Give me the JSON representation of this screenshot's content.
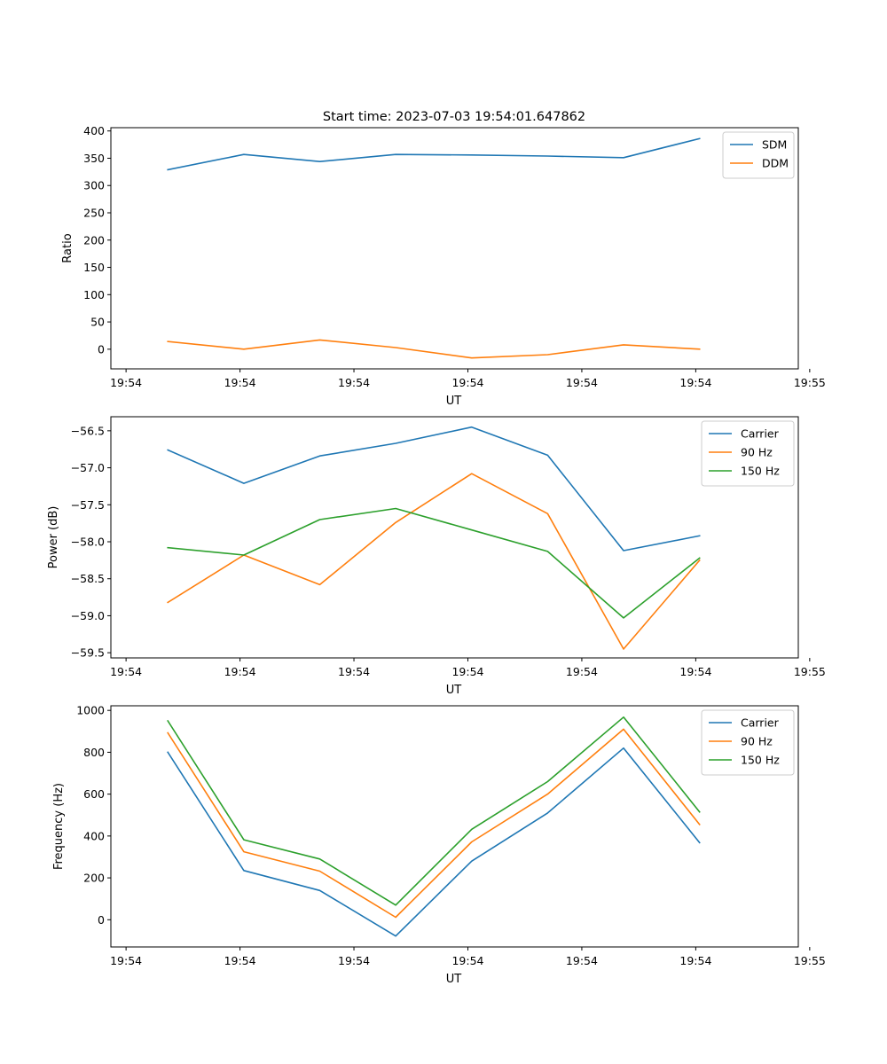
{
  "title": "Start time: 2023-07-03 19:54:01.647862",
  "chart_data": [
    {
      "type": "line",
      "title": "Start time: 2023-07-03 19:54:01.647862",
      "xlabel": "UT",
      "ylabel": "Ratio",
      "xlim": [
        -0.75,
        8.3
      ],
      "ylim": [
        -36,
        406
      ],
      "x_ticks": [
        -0.55,
        0.95,
        2.45,
        3.95,
        5.45,
        6.95,
        8.45
      ],
      "x_tick_labels": [
        "19:54",
        "19:54",
        "19:54",
        "19:54",
        "19:54",
        "19:54",
        "19:55"
      ],
      "y_ticks": [
        0,
        50,
        100,
        150,
        200,
        250,
        300,
        350,
        400
      ],
      "y_tick_labels": [
        "0",
        "50",
        "100",
        "150",
        "200",
        "250",
        "300",
        "350",
        "400"
      ],
      "x": [
        0,
        1,
        2,
        3,
        4,
        5,
        6,
        7
      ],
      "legend": "upper-right",
      "series": [
        {
          "name": "SDM",
          "color": "#1f77b4",
          "values": [
            329,
            357,
            344,
            357,
            356,
            354,
            351,
            386
          ]
        },
        {
          "name": "DDM",
          "color": "#ff7f0e",
          "values": [
            14,
            0,
            17,
            3,
            -16,
            -10,
            8,
            0
          ]
        }
      ]
    },
    {
      "type": "line",
      "xlabel": "UT",
      "ylabel": "Power (dB)",
      "xlim": [
        -0.75,
        8.3
      ],
      "ylim": [
        -59.57,
        -56.31
      ],
      "x_ticks": [
        -0.55,
        0.95,
        2.45,
        3.95,
        5.45,
        6.95,
        8.45
      ],
      "x_tick_labels": [
        "19:54",
        "19:54",
        "19:54",
        "19:54",
        "19:54",
        "19:54",
        "19:55"
      ],
      "y_ticks": [
        -59.5,
        -59.0,
        -58.5,
        -58.0,
        -57.5,
        -57.0,
        -56.5
      ],
      "y_tick_labels": [
        "−59.5",
        "−59.0",
        "−58.5",
        "−58.0",
        "−57.5",
        "−57.0",
        "−56.5"
      ],
      "x": [
        0,
        1,
        2,
        3,
        4,
        5,
        6,
        7
      ],
      "legend": "upper-right",
      "series": [
        {
          "name": "Carrier",
          "color": "#1f77b4",
          "values": [
            -56.76,
            -57.21,
            -56.84,
            -56.67,
            -56.45,
            -56.83,
            -58.12,
            -57.92
          ]
        },
        {
          "name": "90 Hz",
          "color": "#ff7f0e",
          "values": [
            -58.82,
            -58.18,
            -58.58,
            -57.74,
            -57.08,
            -57.62,
            -59.45,
            -58.25
          ]
        },
        {
          "name": "150 Hz",
          "color": "#2ca02c",
          "values": [
            -58.08,
            -58.18,
            -57.7,
            -57.55,
            -57.84,
            -58.13,
            -59.03,
            -58.22
          ]
        }
      ]
    },
    {
      "type": "line",
      "xlabel": "UT",
      "ylabel": "Frequency (Hz)",
      "xlim": [
        -0.75,
        8.3
      ],
      "ylim": [
        -130,
        1022
      ],
      "x_ticks": [
        -0.55,
        0.95,
        2.45,
        3.95,
        5.45,
        6.95,
        8.45
      ],
      "x_tick_labels": [
        "19:54",
        "19:54",
        "19:54",
        "19:54",
        "19:54",
        "19:54",
        "19:55"
      ],
      "y_ticks": [
        0,
        200,
        400,
        600,
        800,
        1000
      ],
      "y_tick_labels": [
        "0",
        "200",
        "400",
        "600",
        "800",
        "1000"
      ],
      "x": [
        0,
        1,
        2,
        3,
        4,
        5,
        6,
        7
      ],
      "legend": "upper-right",
      "series": [
        {
          "name": "Carrier",
          "color": "#1f77b4",
          "values": [
            800,
            235,
            140,
            -78,
            280,
            510,
            820,
            368
          ]
        },
        {
          "name": "90 Hz",
          "color": "#ff7f0e",
          "values": [
            893,
            325,
            232,
            12,
            372,
            600,
            910,
            455
          ]
        },
        {
          "name": "150 Hz",
          "color": "#2ca02c",
          "values": [
            950,
            382,
            290,
            70,
            432,
            660,
            968,
            515
          ]
        }
      ]
    }
  ]
}
